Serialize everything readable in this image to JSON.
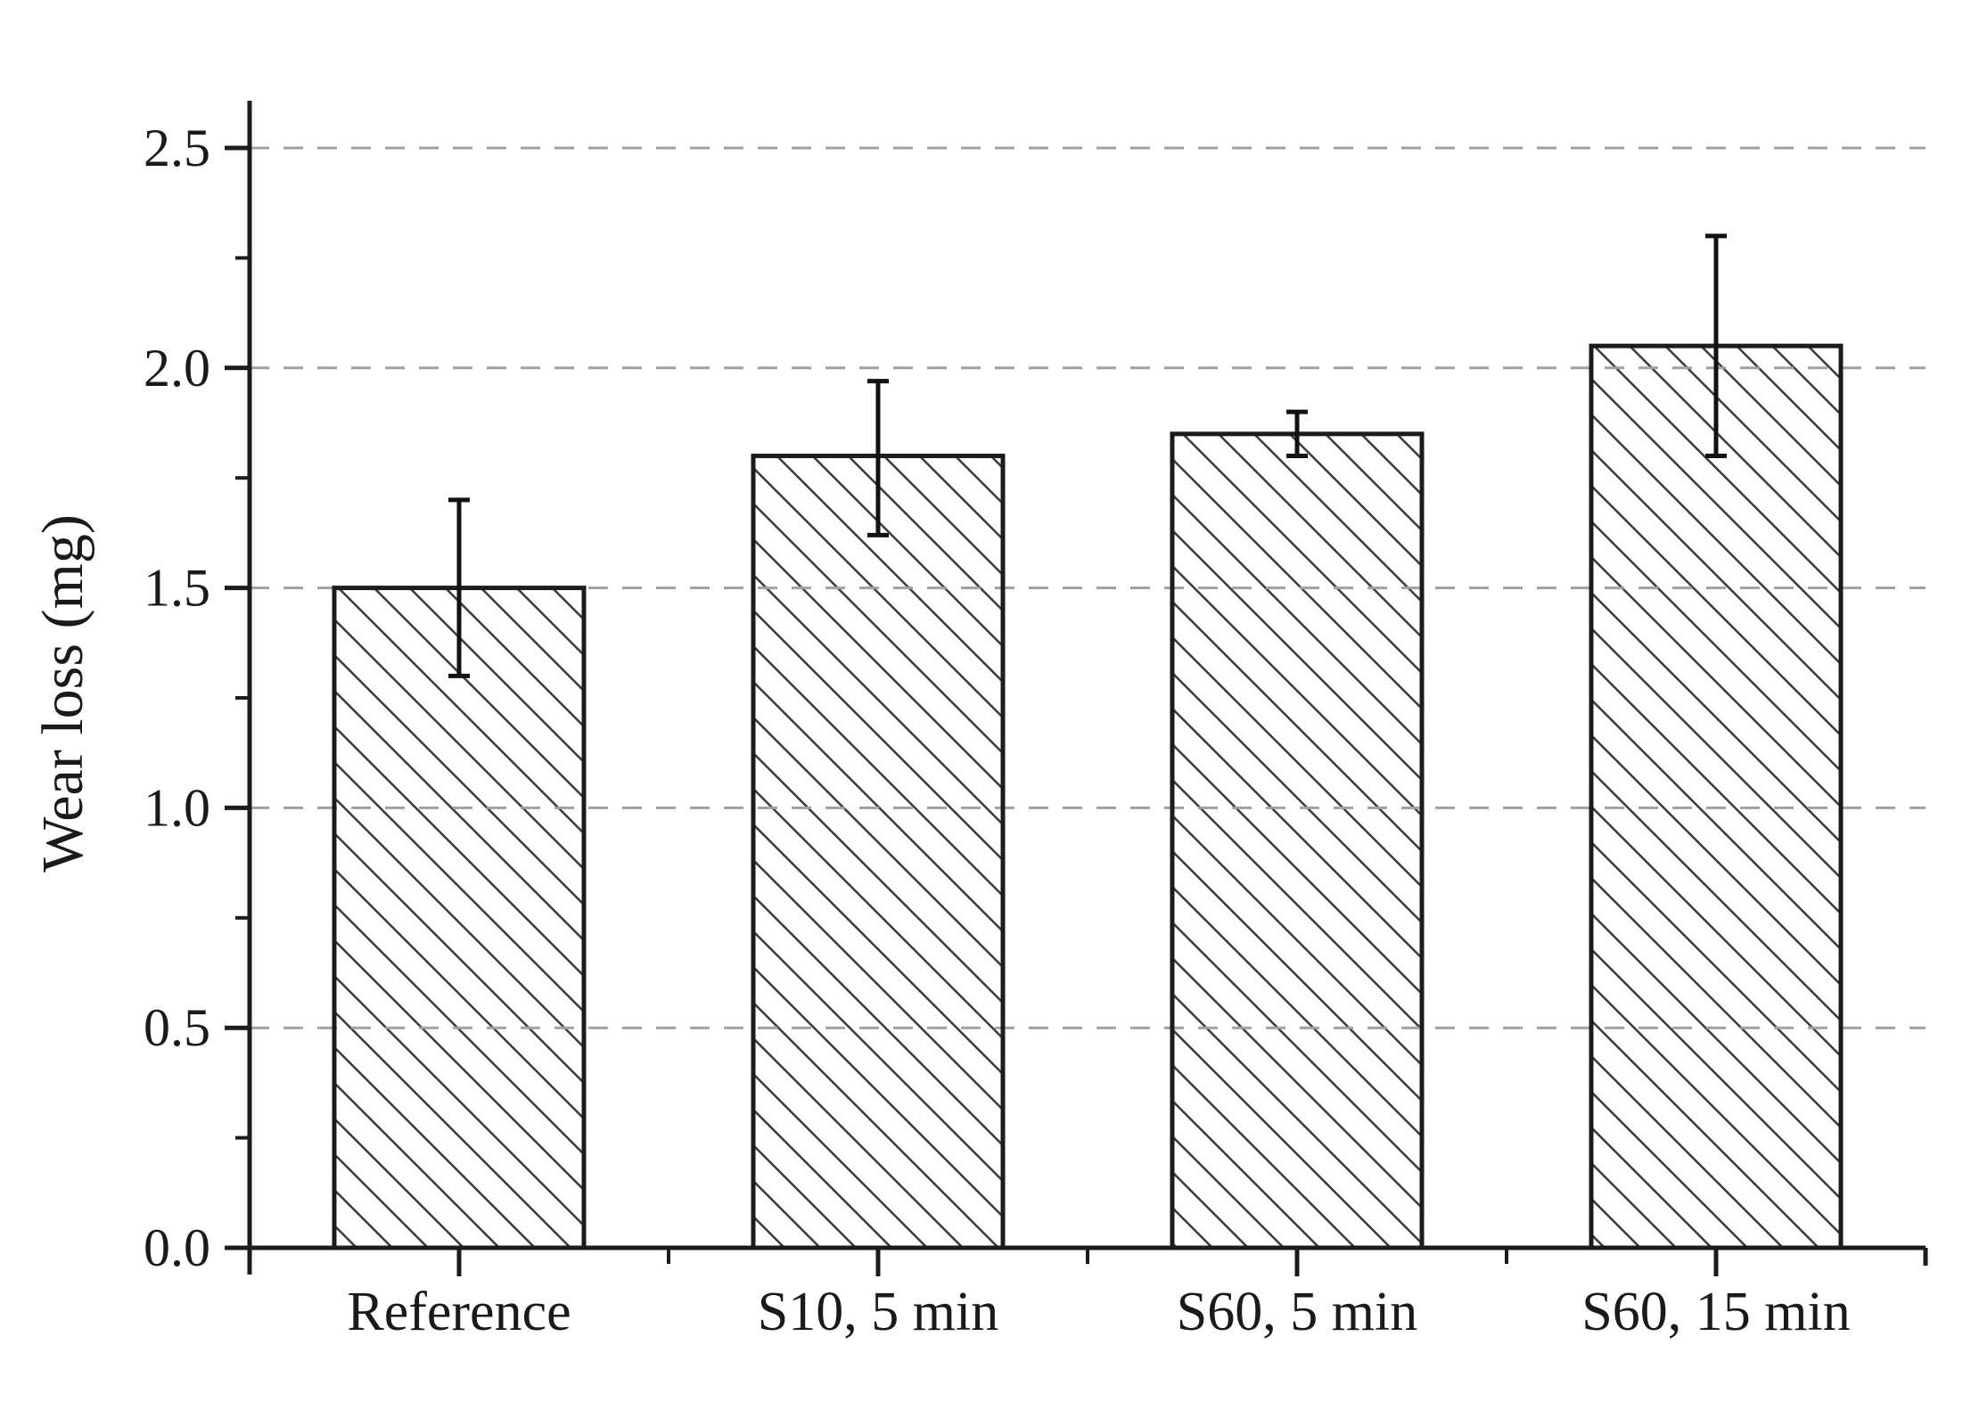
{
  "chart_data": {
    "type": "bar",
    "title": "",
    "xlabel": "",
    "ylabel": "Wear loss (mg)",
    "categories": [
      "Reference",
      "S10, 5 min",
      "S60, 5 min",
      "S60, 15 min"
    ],
    "values": [
      1.5,
      1.8,
      1.85,
      2.05
    ],
    "error_plus": [
      0.2,
      0.17,
      0.05,
      0.25
    ],
    "error_minus": [
      0.2,
      0.18,
      0.05,
      0.25
    ],
    "ylim": [
      0.0,
      2.6
    ],
    "yticks": [
      0.0,
      0.5,
      1.0,
      1.5,
      2.0,
      2.5
    ],
    "ytick_labels": [
      "0.0",
      "0.5",
      "1.0",
      "1.5",
      "2.0",
      "2.5"
    ],
    "minor_ytick_step": 0.25,
    "grid": "dashed horizontal gridlines at major y ticks",
    "legend": "none",
    "bar_style": "white fill with black diagonal backslash hatching, black edges",
    "colors": {
      "background": "#ffffff",
      "axis": "#1c1c1c",
      "bar_edge": "#1c1c1c",
      "hatch": "#404040",
      "grid": "#a0a0a0",
      "error_bar": "#111111",
      "text": "#1a1a1a"
    }
  }
}
